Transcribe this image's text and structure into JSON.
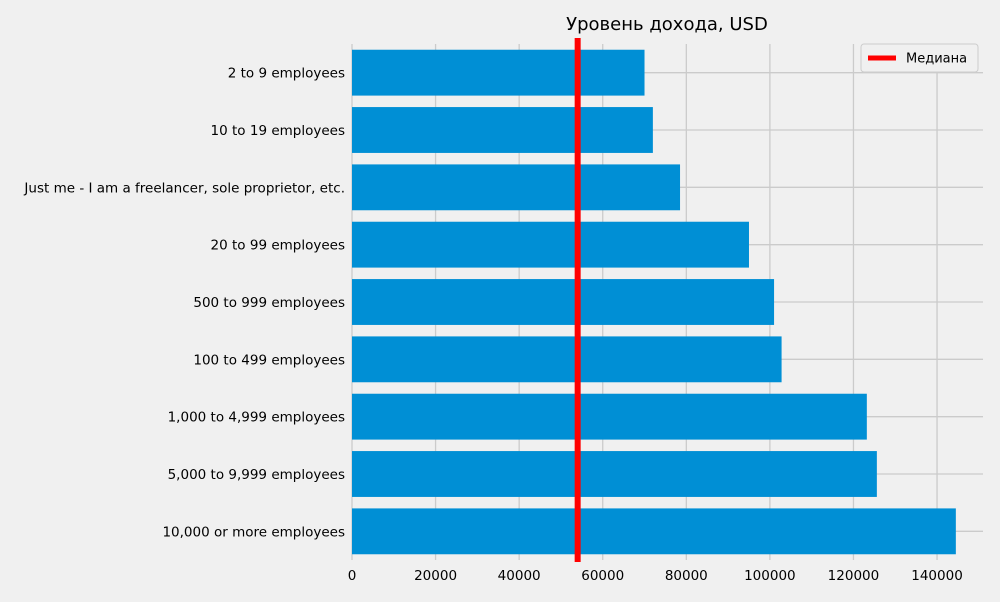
{
  "chart_data": {
    "type": "bar",
    "orientation": "horizontal",
    "title": "Уровень дохода, USD",
    "xlabel": "",
    "ylabel": "",
    "categories": [
      "2 to 9 employees",
      "10 to 19 employees",
      "Just me - I am a freelancer, sole proprietor, etc.",
      "20 to 99 employees",
      "500 to 999 employees",
      "100 to 499 employees",
      "1,000 to 4,999 employees",
      "5,000 to 9,999 employees",
      "10,000 or more employees"
    ],
    "values": [
      70000,
      72000,
      78500,
      95000,
      101000,
      102800,
      123200,
      125600,
      144500
    ],
    "xlim": [
      0,
      151000
    ],
    "xticks": [
      0,
      20000,
      40000,
      60000,
      80000,
      100000,
      120000,
      140000
    ],
    "xtick_labels": [
      "0",
      "20000",
      "40000",
      "60000",
      "80000",
      "100000",
      "120000",
      "140000"
    ],
    "reference_line": {
      "label": "Медиана",
      "value": 54000,
      "orientation": "vertical"
    },
    "grid": true,
    "legend": {
      "position": "top-right",
      "entries": [
        "Медиана"
      ]
    },
    "colors": {
      "bar": "#008fd5",
      "median": "#ff0000",
      "grid": "#cbcbcb",
      "background": "#f0f0f0",
      "text": "#000000"
    }
  }
}
